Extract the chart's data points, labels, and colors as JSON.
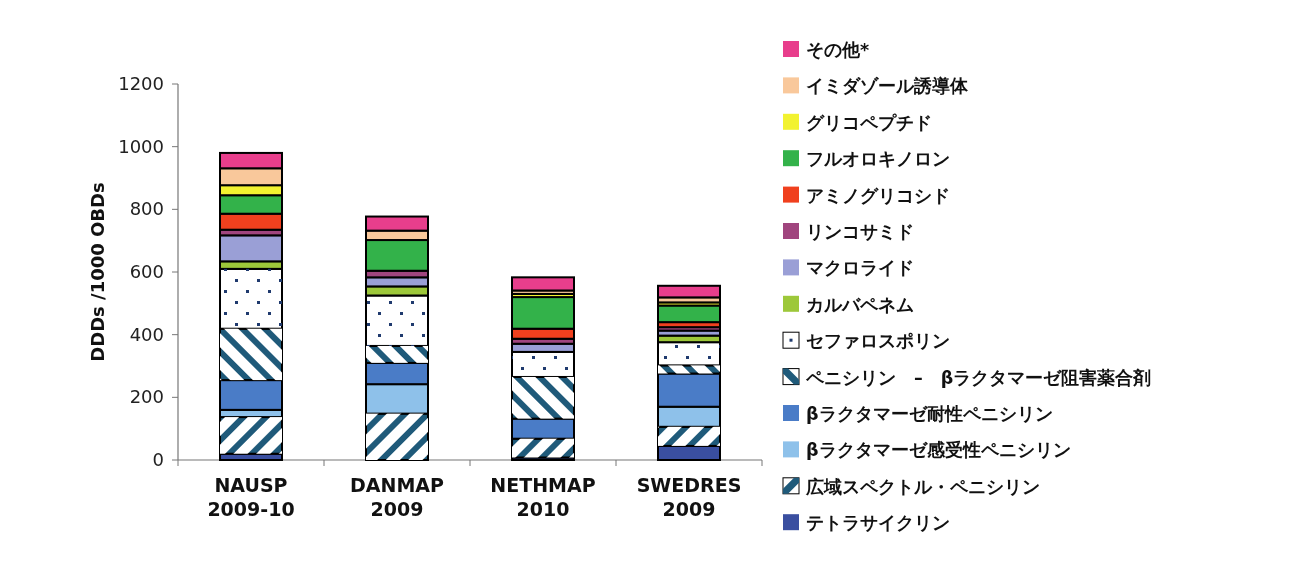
{
  "chart_data": {
    "type": "bar",
    "stacked": true,
    "ylabel": "DDDs /1000 OBDs",
    "categories": [
      "NAUSP 2009-10",
      "DANMAP 2009",
      "NETHMAP 2010",
      "SWEDRES 2009"
    ],
    "ylim": [
      0,
      1200
    ],
    "yticks": [
      0,
      200,
      400,
      600,
      800,
      1000,
      1200
    ],
    "legend": "right",
    "series": [
      {
        "name": "テトラサイクリン",
        "color": "#3a4fa0",
        "values": [
          20,
          null,
          8,
          45
        ]
      },
      {
        "name": "広域スペクトル・ペニシリン",
        "color": "#1f5a7a",
        "values": [
          117,
          148,
          60,
          61
        ]
      },
      {
        "name": "βラクタマーゼ感受性ペニシリン",
        "color": "#8ec1ea",
        "values": [
          23,
          94,
          null,
          64
        ]
      },
      {
        "name": "βラクタマーゼ耐性ペニシリン",
        "color": "#4a7cc7",
        "values": [
          95,
          68,
          64,
          106
        ]
      },
      {
        "name": "ペニシリン　–　βラクタマーゼ阻害薬合剤",
        "color": "#1f5a7a",
        "values": [
          164,
          54,
          133,
          26
        ]
      },
      {
        "name": "セファロスポリン",
        "color": "#ffffff",
        "values": [
          191,
          161,
          80,
          74
        ]
      },
      {
        "name": "カルバペネム",
        "color": "#9dc83a",
        "values": [
          24,
          29,
          null,
          21
        ]
      },
      {
        "name": "マクロライド",
        "color": "#9a9fd6",
        "values": [
          83,
          29,
          26,
          16
        ]
      },
      {
        "name": "リンコサミド",
        "color": "#a0457e",
        "values": [
          18,
          21,
          16,
          11
        ]
      },
      {
        "name": "アミノグリコシド",
        "color": "#f0401e",
        "values": [
          51,
          null,
          32,
          16
        ]
      },
      {
        "name": "フルオロキノロン",
        "color": "#33b24a",
        "values": [
          59,
          98,
          101,
          53
        ]
      },
      {
        "name": "グリコペプチド",
        "color": "#f2f230",
        "values": [
          32,
          null,
          10,
          10
        ]
      },
      {
        "name": "イミダゾール誘導体",
        "color": "#f9c89b",
        "values": [
          54,
          30,
          11,
          16
        ]
      },
      {
        "name": "その他*",
        "color": "#e83e8c",
        "values": [
          49,
          45,
          42,
          37
        ]
      }
    ]
  }
}
